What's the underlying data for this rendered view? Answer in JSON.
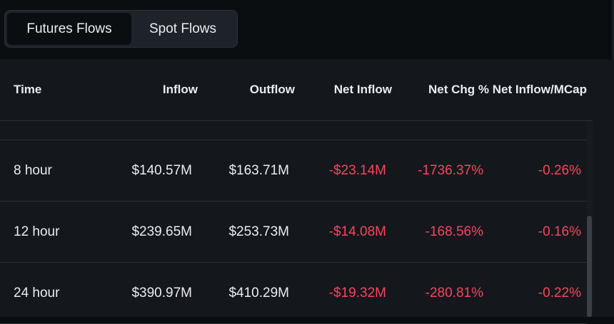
{
  "tabs": [
    {
      "label": "Futures Flows",
      "active": true
    },
    {
      "label": "Spot Flows",
      "active": false
    }
  ],
  "table": {
    "headers": [
      "Time",
      "Inflow",
      "Outflow",
      "Net Inflow",
      "Net Chg %",
      "Net Inflow/MCap"
    ],
    "rows": [
      {
        "time": "8 hour",
        "inflow": "$140.57M",
        "outflow": "$163.71M",
        "net_inflow": "-$23.14M",
        "net_chg": "-1736.37%",
        "net_mcap": "-0.26%"
      },
      {
        "time": "12 hour",
        "inflow": "$239.65M",
        "outflow": "$253.73M",
        "net_inflow": "-$14.08M",
        "net_chg": "-168.56%",
        "net_mcap": "-0.16%"
      },
      {
        "time": "24 hour",
        "inflow": "$390.97M",
        "outflow": "$410.29M",
        "net_inflow": "-$19.32M",
        "net_chg": "-280.81%",
        "net_mcap": "-0.22%"
      }
    ]
  },
  "colors": {
    "background": "#0b0e11",
    "panel": "#14171c",
    "text": "#eaecef",
    "negative": "#f6465d"
  }
}
